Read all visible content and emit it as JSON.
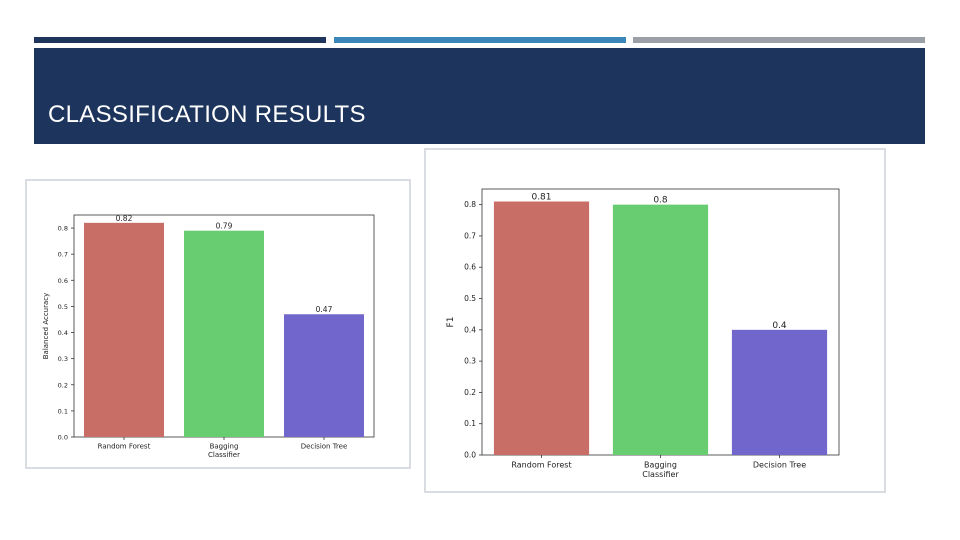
{
  "slide": {
    "title": "CLASSIFICATION RESULTS"
  },
  "theme": {
    "banner_color": "#1d345d",
    "stripe_colors": [
      "#1d345d",
      "#3b88b8",
      "#9aa0a6"
    ]
  },
  "chart_data": [
    {
      "type": "bar",
      "categories": [
        "Random Forest",
        "Bagging\nClassifier",
        "Decision Tree"
      ],
      "values": [
        0.82,
        0.79,
        0.47
      ],
      "value_labels": [
        "0.82",
        "0.79",
        "0.47"
      ],
      "colors": [
        "#c96e66",
        "#68cc70",
        "#7066cc"
      ],
      "ylabel": "Balanced Accuracy",
      "xlabel": "",
      "ylim": [
        0,
        0.85
      ],
      "yticks": [
        "0.0",
        "0.1",
        "0.2",
        "0.3",
        "0.4",
        "0.5",
        "0.6",
        "0.7",
        "0.8"
      ],
      "grid": false,
      "legend": "none"
    },
    {
      "type": "bar",
      "categories": [
        "Random Forest",
        "Bagging\nClassifier",
        "Decision Tree"
      ],
      "values": [
        0.81,
        0.8,
        0.4
      ],
      "value_labels": [
        "0.81",
        "0.8",
        "0.4"
      ],
      "colors": [
        "#c96e66",
        "#68cc70",
        "#7066cc"
      ],
      "ylabel": "F1",
      "xlabel": "",
      "ylim": [
        0,
        0.85
      ],
      "yticks": [
        "0.0",
        "0.1",
        "0.2",
        "0.3",
        "0.4",
        "0.5",
        "0.6",
        "0.7",
        "0.8"
      ],
      "grid": false,
      "legend": "none"
    }
  ]
}
